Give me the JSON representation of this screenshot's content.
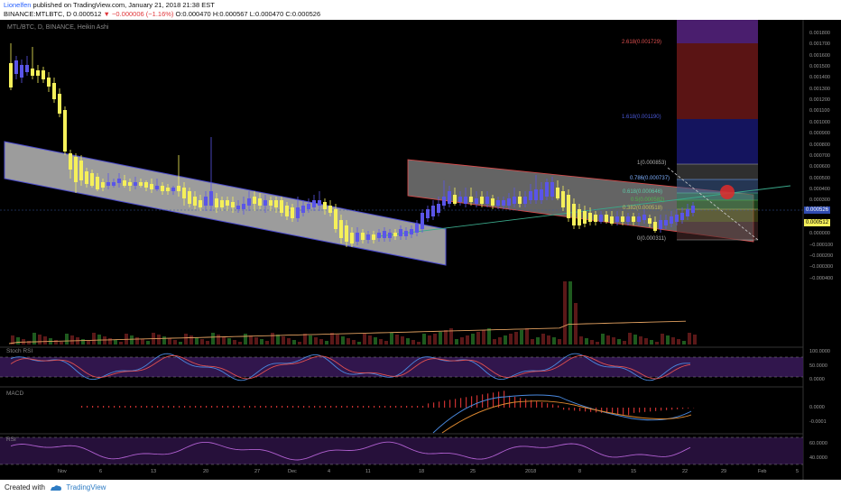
{
  "header": {
    "author": "Lionelfen",
    "published": "published on TradingView.com, January 21, 2018 21:38 EST",
    "symbol": "BINANCE:MTLBTC, D",
    "last": "0.000512",
    "change_arrow": "▼",
    "change": "−0.000006 (−1.16%)",
    "open": "O:0.000470",
    "high": "H:0.000567",
    "low": "L:0.000470",
    "close": "C:0.000526"
  },
  "chart": {
    "title": "MTL/BTC, D, BINANCE, Heikin Ashi",
    "panes": {
      "stoch": "Stoch RSI",
      "macd": "MACD",
      "rsi": "RSI"
    },
    "price_scale": [
      "0.001800",
      "0.001700",
      "0.001600",
      "0.001500",
      "0.001400",
      "0.001300",
      "0.001200",
      "0.001100",
      "0.001000",
      "0.000900",
      "0.000800",
      "0.000700",
      "0.000600",
      "0.000500",
      "0.000400",
      "0.000300",
      "0.000200",
      "0.000100",
      "0.000000",
      "−0.000100",
      "−0.000200",
      "−0.000300",
      "−0.000400"
    ],
    "price_badges": {
      "current": "0.000526",
      "last": "0.000512"
    },
    "stoch_scale": [
      "100.0000",
      "50.0000",
      "0.0000"
    ],
    "macd_scale": [
      "0.0000",
      "-0.0001"
    ],
    "rsi_scale": [
      "60.0000",
      "40.0000"
    ],
    "x_axis": [
      "Nov",
      "6",
      "13",
      "20",
      "27",
      "Dec",
      "4",
      "11",
      "18",
      "25",
      "2018",
      "8",
      "15",
      "22",
      "29",
      "Feb",
      "5"
    ],
    "fib_upper": [
      {
        "label": "2.618(0.001729)",
        "color": "#e05050"
      },
      {
        "label": "1.618(0.001190)",
        "color": "#4a58d8"
      }
    ],
    "fib_levels": [
      {
        "label": "1(0.000853)",
        "color": "#b0b0b0"
      },
      {
        "label": "0.786(0.000737)",
        "color": "#7fb0ff"
      },
      {
        "label": "0.618(0.000646)",
        "color": "#5ec8a8"
      },
      {
        "label": "0.5(0.000582)",
        "color": "#4db84d"
      },
      {
        "label": "0.382(0.000518)",
        "color": "#c0c060"
      },
      {
        "label": "0(0.000311)",
        "color": "#b0b0b0"
      }
    ],
    "colors": {
      "bull_candle": "#5a55e8",
      "bear_candle": "#f5f05a",
      "channel_fill": "#c8c8c8",
      "channel_edge": "#4a4ad0",
      "upper_channel_edge": "#e04a4a"
    }
  },
  "footer": {
    "created_with": "Created with",
    "brand": "TradingView"
  }
}
